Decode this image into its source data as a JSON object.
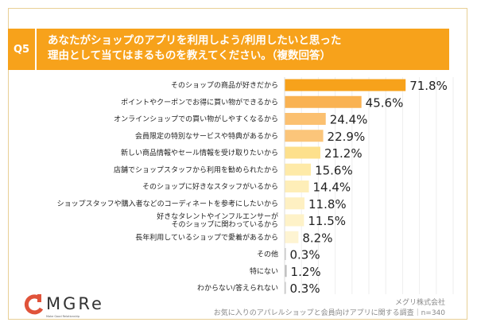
{
  "question": {
    "number": "Q5",
    "title_line1": "あなたがショップのアプリを利用しよう/利用したいと思った",
    "title_line2": "理由として当てはまるものを教えてください。（複数回答）"
  },
  "chart_data": {
    "type": "bar",
    "orientation": "horizontal",
    "title": "",
    "xlim": [
      0,
      100
    ],
    "grid": true,
    "categories": [
      "そのショップの商品が好きだから",
      "ポイントやクーポンでお得に買い物ができるから",
      "オンラインショップでの買い物がしやすくなるから",
      "会員限定の特別なサービスや特典があるから",
      "新しい商品情報やセール情報を受け取りたいから",
      "店舗でショップスタッフから利用を勧められたから",
      "そのショップに好きなスタッフがいるから",
      "ショップスタッフや購入者などのコーディネートを参考にしたいから",
      "好きなタレントやインフルエンサーが\nそのショップに関わっているから",
      "長年利用しているショップで愛着があるから",
      "その他",
      "特にない",
      "わからない/答えられない"
    ],
    "values": [
      71.8,
      45.6,
      24.4,
      22.9,
      21.2,
      15.6,
      14.4,
      11.8,
      11.5,
      8.2,
      0.3,
      1.2,
      0.3
    ],
    "value_labels": [
      "71.8%",
      "45.6%",
      "24.4%",
      "22.9%",
      "21.2%",
      "15.6%",
      "14.4%",
      "11.8%",
      "11.5%",
      "8.2%",
      "0.3%",
      "1.2%",
      "0.3%"
    ],
    "colors": [
      "#f7a21b",
      "#f9b252",
      "#fbc070",
      "#fbc57a",
      "#fde08c",
      "#feeaa8",
      "#feeeb8",
      "#fef0c2",
      "#fef2c8",
      "#fef4d2",
      "#bbbbbb",
      "#bbbbbb",
      "#bbbbbb"
    ]
  },
  "brand": {
    "logo": "MGRe",
    "tagline": "Make Good Relationship",
    "color": "#e0533a"
  },
  "source": {
    "company": "メグリ株式会社",
    "survey": "お気に入りのアパレルショップと会員向けアプリに関する調査｜n=340"
  }
}
